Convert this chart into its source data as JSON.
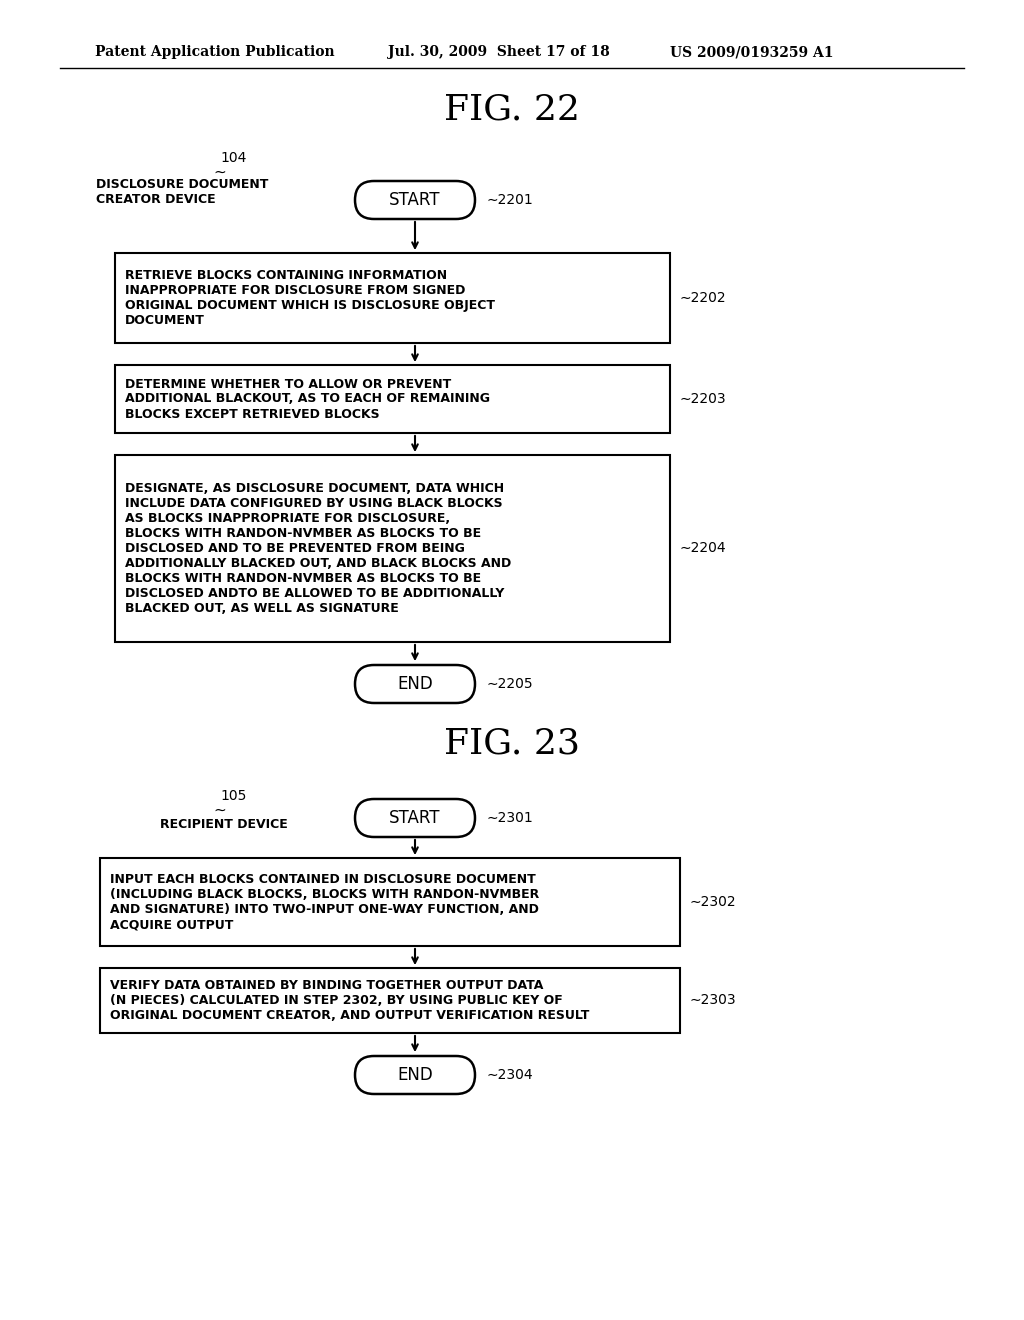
{
  "bg_color": "#ffffff",
  "header_left": "Patent Application Publication",
  "header_mid": "Jul. 30, 2009  Sheet 17 of 18",
  "header_right": "US 2009/0193259 A1",
  "fig22_title": "FIG. 22",
  "fig23_title": "FIG. 23",
  "fig22": {
    "num_label": "104",
    "device_text": "DISCLOSURE DOCUMENT\nCREATOR DEVICE",
    "start_label": "2201",
    "start_text": "START",
    "box2202_text": "RETRIEVE BLOCKS CONTAINING INFORMATION\nINAPPROPRIATE FOR DISCLOSURE FROM SIGNED\nORIGINAL DOCUMENT WHICH IS DISCLOSURE OBJECT\nDOCUMENT",
    "box2202_id": "2202",
    "box2203_text": "DETERMINE WHETHER TO ALLOW OR PREVENT\nADDITIONAL BLACKOUT, AS TO EACH OF REMAINING\nBLOCKS EXCEPT RETRIEVED BLOCKS",
    "box2203_id": "2203",
    "box2204_text": "DESIGNATE, AS DISCLOSURE DOCUMENT, DATA WHICH\nINCLUDE DATA CONFIGURED BY USING BLACK BLOCKS\nAS BLOCKS INAPPROPRIATE FOR DISCLOSURE,\nBLOCKS WITH RANDON-NVMBER AS BLOCKS TO BE\nDISCLOSED AND TO BE PREVENTED FROM BEING\nADDITIONALLY BLACKED OUT, AND BLACK BLOCKS AND\nBLOCKS WITH RANDON-NVMBER AS BLOCKS TO BE\nDISCLOSED ANDTO BE ALLOWED TO BE ADDITIONALLY\nBLACKED OUT, AS WELL AS SIGNATURE",
    "box2204_id": "2204",
    "end_label": "2205",
    "end_text": "END"
  },
  "fig23": {
    "num_label": "105",
    "device_text": "RECIPIENT DEVICE",
    "start_label": "2301",
    "start_text": "START",
    "box2302_text": "INPUT EACH BLOCKS CONTAINED IN DISCLOSURE DOCUMENT\n(INCLUDING BLACK BLOCKS, BLOCKS WITH RANDON-NVMBER\nAND SIGNATURE) INTO TWO-INPUT ONE-WAY FUNCTION, AND\nACQUIRE OUTPUT",
    "box2302_id": "2302",
    "box2303_text": "VERIFY DATA OBTAINED BY BINDING TOGETHER OUTPUT DATA\n(N PIECES) CALCULATED IN STEP 2302, BY USING PUBLIC KEY OF\nORIGINAL DOCUMENT CREATOR, AND OUTPUT VERIFICATION RESULT",
    "box2303_id": "2303",
    "end_label": "2304",
    "end_text": "END"
  }
}
